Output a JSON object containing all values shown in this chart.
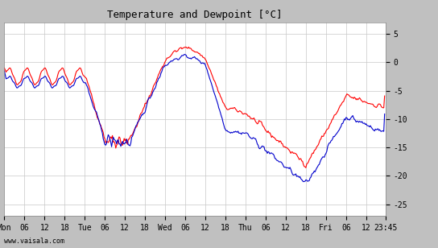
{
  "title": "Temperature and Dewpoint [°C]",
  "ylabel_right": true,
  "yticks": [
    5,
    0,
    -5,
    -10,
    -15,
    -20,
    -25
  ],
  "ylim": [
    -27,
    7
  ],
  "xlim": [
    0,
    455
  ],
  "bg_color": "#ffffff",
  "outer_bg": "#c0c0c0",
  "grid_color": "#c8c8c8",
  "temp_color": "#ff0000",
  "dew_color": "#0000cc",
  "watermark": "www.vaisala.com",
  "xtick_labels": [
    "Mon",
    "06",
    "12",
    "18",
    "Tue",
    "06",
    "12",
    "18",
    "Wed",
    "06",
    "12",
    "18",
    "Thu",
    "06",
    "12",
    "18",
    "Fri",
    "06",
    "12",
    "23:45"
  ],
  "xtick_positions": [
    0,
    24,
    48,
    72,
    96,
    120,
    144,
    168,
    192,
    216,
    240,
    264,
    288,
    312,
    336,
    360,
    384,
    408,
    432,
    455
  ]
}
